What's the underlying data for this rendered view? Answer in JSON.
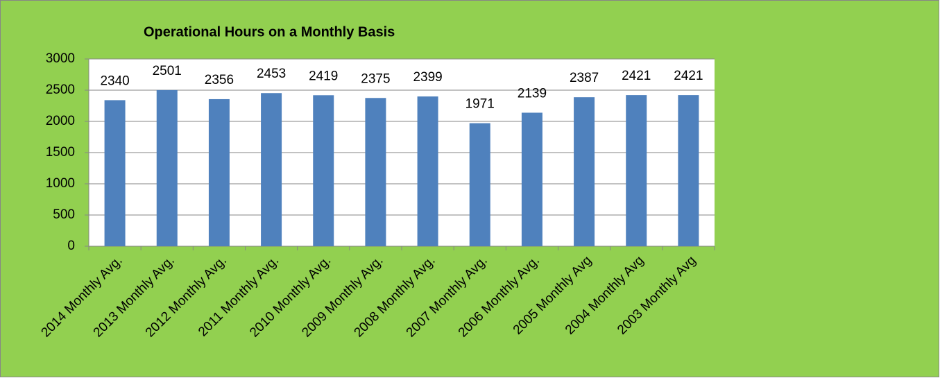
{
  "chart_data": {
    "type": "bar",
    "title": "Operational Hours on a Monthly Basis",
    "categories": [
      "2014 Monthly Avg.",
      "2013 Monthly Avg.",
      "2012 Monthly Avg.",
      "2011 Monthly Avg.",
      "2010 Monthly Avg.",
      "2009 Monthly Avg.",
      "2008 Monthly Avg.",
      "2007 Monthly Avg.",
      "2006 Monthly Avg.",
      "2005 Monthly Avg",
      "2004 Monthly Avg",
      "2003 Monthly Avg"
    ],
    "values": [
      2340,
      2501,
      2356,
      2453,
      2419,
      2375,
      2399,
      1971,
      2139,
      2387,
      2421,
      2421
    ],
    "color": "#4f81bd",
    "ylim": [
      0,
      3000
    ],
    "yticks": [
      0,
      500,
      1000,
      1500,
      2000,
      2500,
      3000
    ],
    "grid": true
  }
}
